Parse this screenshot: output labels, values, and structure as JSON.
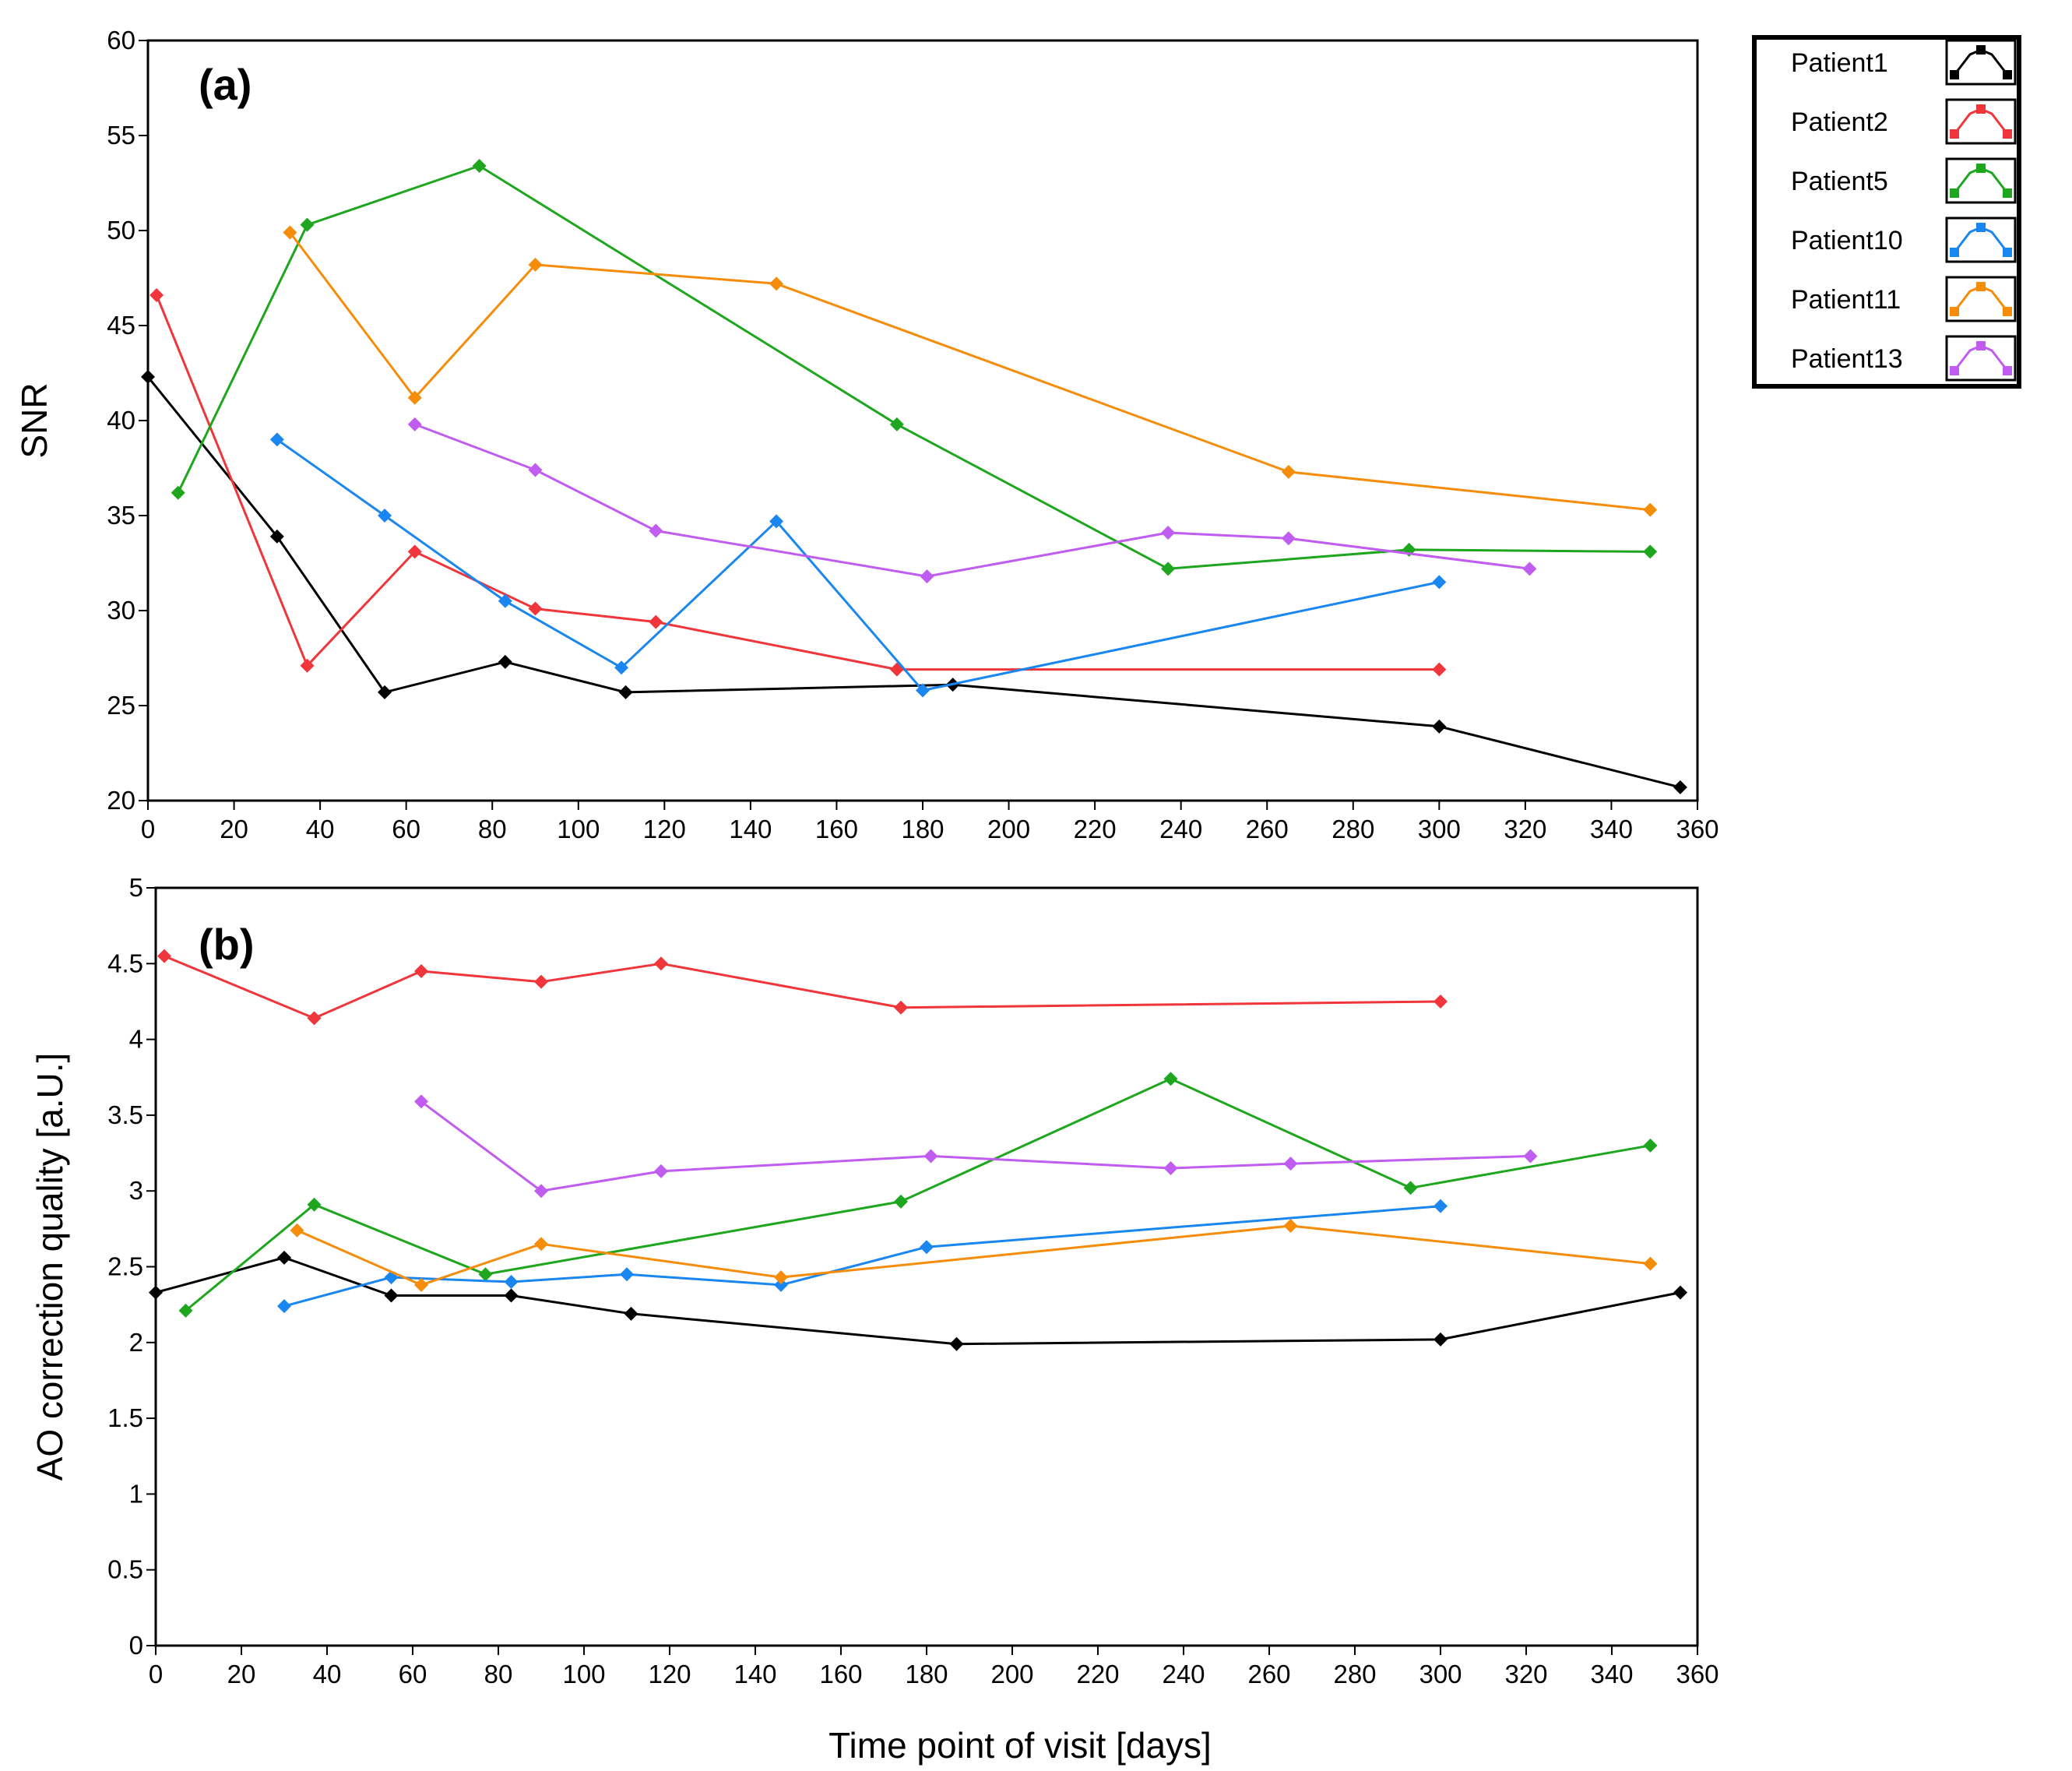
{
  "legend": {
    "entries": [
      {
        "name": "Patient1",
        "color": "#000000"
      },
      {
        "name": "Patient2",
        "color": "#f0353b"
      },
      {
        "name": "Patient5",
        "color": "#1ea61e"
      },
      {
        "name": "Patient10",
        "color": "#1a86f0"
      },
      {
        "name": "Patient11",
        "color": "#f58c0a"
      },
      {
        "name": "Patient13",
        "color": "#c05cf0"
      }
    ]
  },
  "shared_xlabel": "Time point of visit [days]",
  "chart_data": [
    {
      "type": "line",
      "panel_label": "(a)",
      "title": "",
      "xlabel": "",
      "ylabel": "SNR",
      "xlim": [
        0,
        360
      ],
      "ylim": [
        20,
        60
      ],
      "x_ticks": [
        0,
        20,
        40,
        60,
        80,
        100,
        120,
        140,
        160,
        180,
        200,
        220,
        240,
        260,
        280,
        300,
        320,
        340,
        360
      ],
      "y_ticks": [
        20,
        25,
        30,
        35,
        40,
        45,
        50,
        55,
        60
      ],
      "grid": false,
      "legend_position": "right",
      "marker": "diamond",
      "series": [
        {
          "name": "Patient1",
          "color": "#000000",
          "x": [
            0,
            30,
            55,
            83,
            111,
            187,
            300,
            356
          ],
          "y": [
            42.3,
            33.9,
            25.7,
            27.3,
            25.7,
            26.1,
            23.9,
            20.7
          ]
        },
        {
          "name": "Patient2",
          "color": "#f0353b",
          "x": [
            2,
            37,
            62,
            90,
            118,
            174,
            300
          ],
          "y": [
            46.6,
            27.1,
            33.1,
            30.1,
            29.4,
            26.9,
            26.9
          ]
        },
        {
          "name": "Patient5",
          "color": "#1ea61e",
          "x": [
            7,
            37,
            77,
            174,
            237,
            293,
            349
          ],
          "y": [
            36.2,
            50.3,
            53.4,
            39.8,
            32.2,
            33.2,
            33.1
          ]
        },
        {
          "name": "Patient10",
          "color": "#1a86f0",
          "x": [
            30,
            55,
            83,
            110,
            146,
            180,
            300
          ],
          "y": [
            39.0,
            35.0,
            30.5,
            27.0,
            34.7,
            25.8,
            31.5
          ]
        },
        {
          "name": "Patient11",
          "color": "#f58c0a",
          "x": [
            33,
            62,
            90,
            146,
            265,
            349
          ],
          "y": [
            49.9,
            41.2,
            48.2,
            47.2,
            37.3,
            35.3
          ]
        },
        {
          "name": "Patient13",
          "color": "#c05cf0",
          "x": [
            62,
            90,
            118,
            181,
            237,
            265,
            321
          ],
          "y": [
            39.8,
            37.4,
            34.2,
            31.8,
            34.1,
            33.8,
            32.2
          ]
        }
      ]
    },
    {
      "type": "line",
      "panel_label": "(b)",
      "title": "",
      "xlabel": "Time point of visit [days]",
      "ylabel": "AO correction quality [a.U.]",
      "xlim": [
        0,
        360
      ],
      "ylim": [
        0,
        5
      ],
      "x_ticks": [
        0,
        20,
        40,
        60,
        80,
        100,
        120,
        140,
        160,
        180,
        200,
        220,
        240,
        260,
        280,
        300,
        320,
        340,
        360
      ],
      "y_ticks": [
        0,
        0.5,
        1,
        1.5,
        2,
        2.5,
        3,
        3.5,
        4,
        4.5,
        5
      ],
      "grid": false,
      "legend_position": "right",
      "marker": "diamond",
      "series": [
        {
          "name": "Patient1",
          "color": "#000000",
          "x": [
            0,
            30,
            55,
            83,
            111,
            187,
            300,
            356
          ],
          "y": [
            2.33,
            2.56,
            2.31,
            2.31,
            2.19,
            1.99,
            2.02,
            2.33
          ]
        },
        {
          "name": "Patient2",
          "color": "#f0353b",
          "x": [
            2,
            37,
            62,
            90,
            118,
            174,
            300
          ],
          "y": [
            4.55,
            4.14,
            4.45,
            4.38,
            4.5,
            4.21,
            4.25
          ]
        },
        {
          "name": "Patient5",
          "color": "#1ea61e",
          "x": [
            7,
            37,
            77,
            174,
            237,
            293,
            349
          ],
          "y": [
            2.21,
            2.91,
            2.45,
            2.93,
            3.74,
            3.02,
            3.3
          ]
        },
        {
          "name": "Patient10",
          "color": "#1a86f0",
          "x": [
            30,
            55,
            83,
            110,
            146,
            180,
            300
          ],
          "y": [
            2.24,
            2.43,
            2.4,
            2.45,
            2.38,
            2.63,
            2.9
          ]
        },
        {
          "name": "Patient11",
          "color": "#f58c0a",
          "x": [
            33,
            62,
            90,
            146,
            265,
            349
          ],
          "y": [
            2.74,
            2.38,
            2.65,
            2.43,
            2.77,
            2.52
          ]
        },
        {
          "name": "Patient13",
          "color": "#c05cf0",
          "x": [
            62,
            90,
            118,
            181,
            237,
            265,
            321
          ],
          "y": [
            3.59,
            3.0,
            3.13,
            3.23,
            3.15,
            3.18,
            3.23
          ]
        }
      ]
    }
  ]
}
